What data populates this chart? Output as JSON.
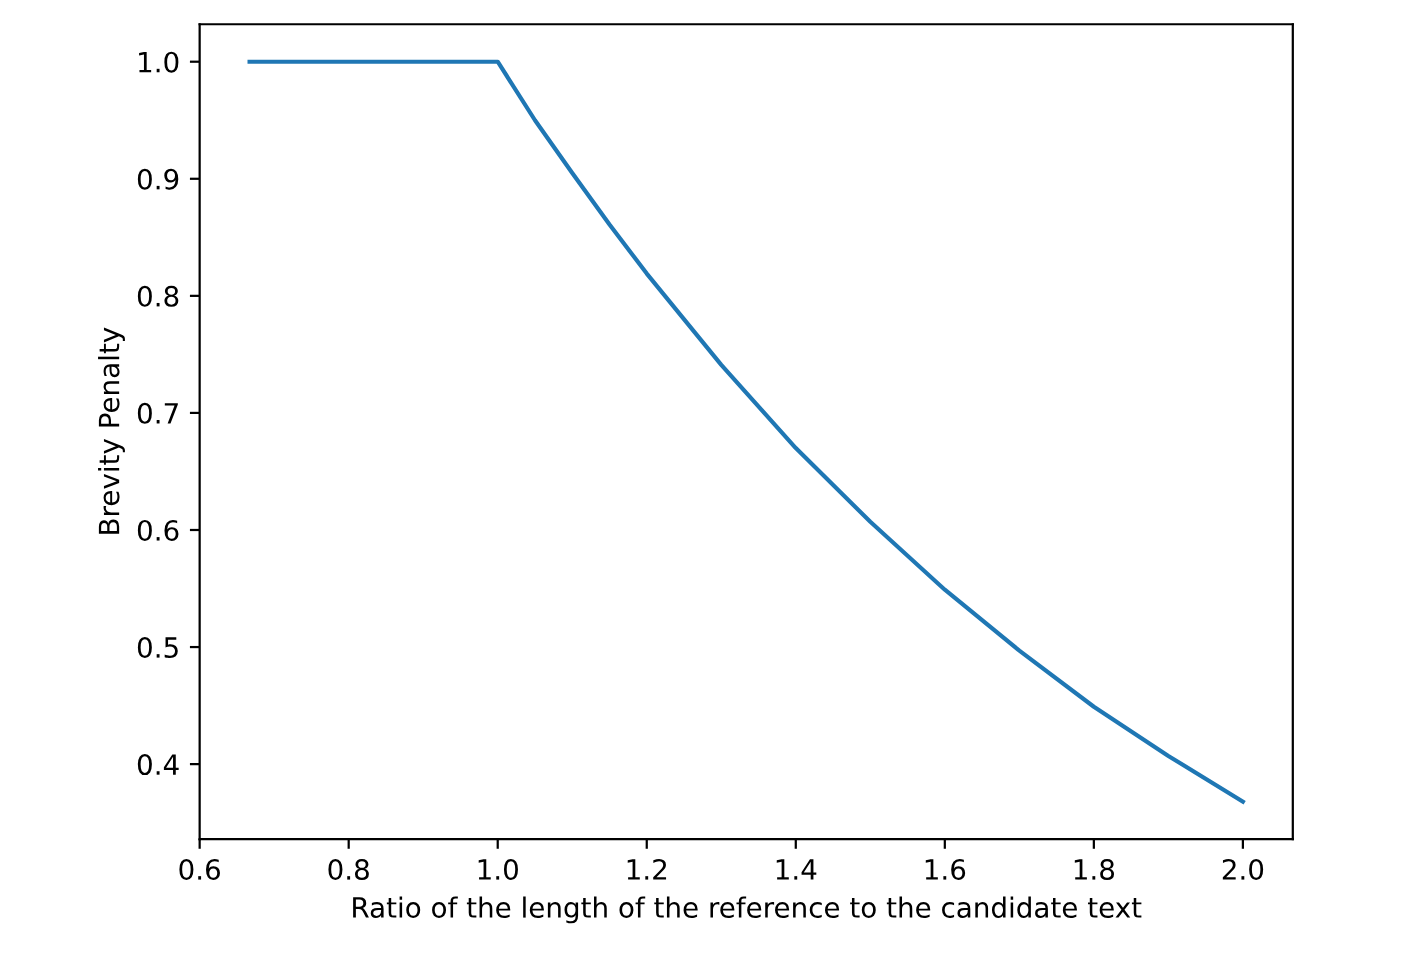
{
  "chart_data": {
    "type": "line",
    "xlabel": "Ratio of the length of the reference to the candidate text",
    "ylabel": "Brevity Penalty",
    "x": [
      0.667,
      0.8,
      0.9,
      1.0,
      1.05,
      1.1,
      1.15,
      1.2,
      1.3,
      1.4,
      1.5,
      1.6,
      1.7,
      1.8,
      1.9,
      2.0
    ],
    "series": [
      {
        "color": "#1f77b4",
        "values": [
          1.0,
          1.0,
          1.0,
          1.0,
          0.95,
          0.905,
          0.861,
          0.819,
          0.741,
          0.67,
          0.607,
          0.549,
          0.497,
          0.449,
          0.407,
          0.368
        ]
      }
    ],
    "xlim": [
      0.6,
      2.067
    ],
    "ylim": [
      0.336,
      1.032
    ],
    "xticks": [
      0.6,
      0.8,
      {
        "value": 1,
        "label": "1.0"
      },
      1.2,
      1.4,
      1.6,
      1.8,
      {
        "value": 2,
        "label": "2.0"
      }
    ],
    "yticks": [
      0.4,
      0.5,
      0.6,
      0.7,
      0.8,
      0.9,
      {
        "value": 1,
        "label": "1.0"
      }
    ],
    "grid": false,
    "legend": false
  }
}
